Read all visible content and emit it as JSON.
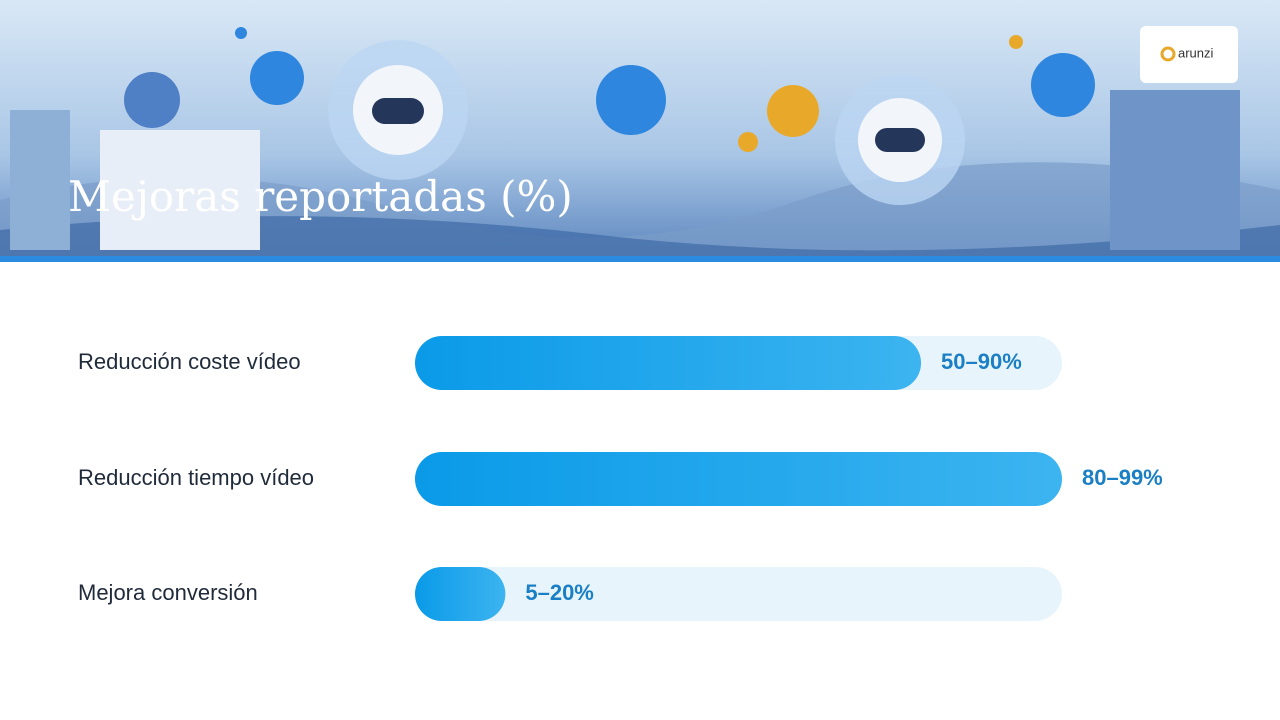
{
  "logo": "arunzi",
  "chart_data": {
    "type": "range-bar",
    "title": "Mejoras reportadas (%)",
    "categories": [
      "Reducción coste vídeo",
      "Reducción tiempo vídeo",
      "Mejora conversión"
    ],
    "low": [
      50,
      80,
      5
    ],
    "high": [
      90,
      99,
      20
    ],
    "value_labels": [
      "50–90%",
      "80–99%",
      "5–20%"
    ],
    "xlim": [
      0,
      89.5
    ],
    "color": "#0a9ae8"
  }
}
